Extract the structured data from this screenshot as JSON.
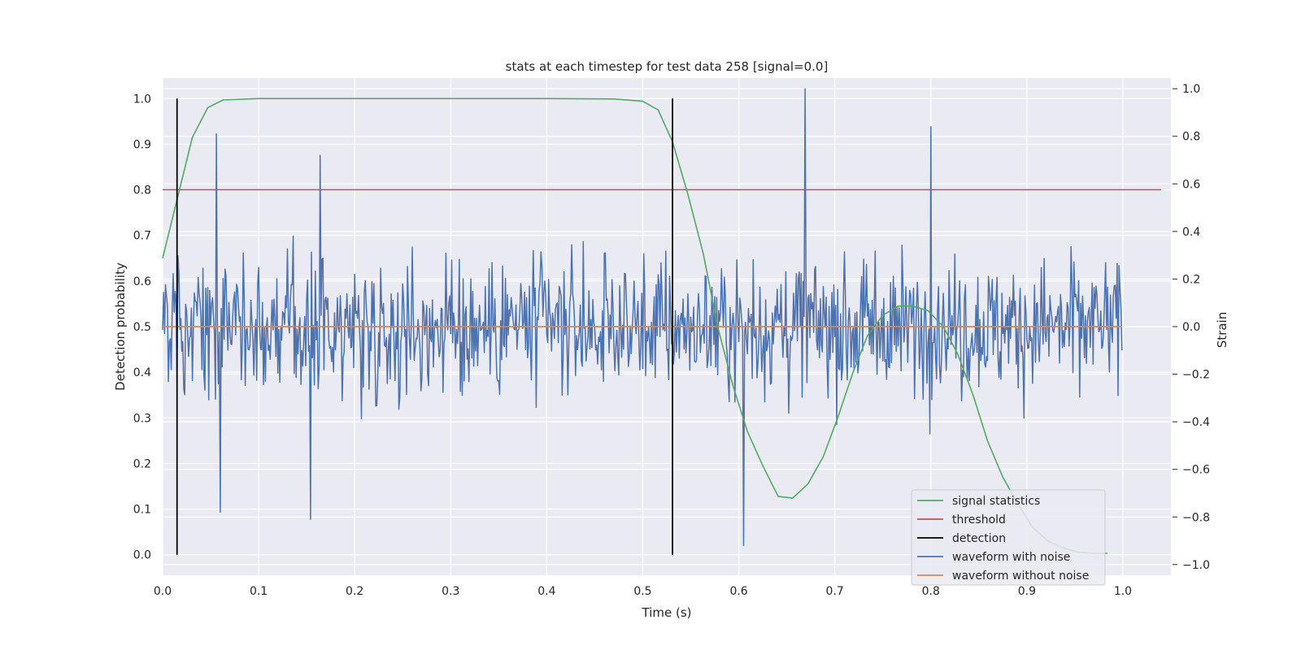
{
  "chart_data": {
    "type": "line",
    "title": "stats at each timestep for test data 258 [signal=0.0]",
    "xlabel": "Time (s)",
    "ylabel": "Detection probability",
    "y2label": "Strain",
    "xlim": [
      0.0,
      1.05
    ],
    "ylim": [
      -0.045,
      1.045
    ],
    "y2lim": [
      -1.045,
      1.045
    ],
    "x_ticks": [
      0.0,
      0.1,
      0.2,
      0.3,
      0.4,
      0.5,
      0.6,
      0.7,
      0.8,
      0.9,
      1.0
    ],
    "x_tick_labels": [
      "0.0",
      "0.1",
      "0.2",
      "0.3",
      "0.4",
      "0.5",
      "0.6",
      "0.7",
      "0.8",
      "0.9",
      "1.0"
    ],
    "y_ticks": [
      0.0,
      0.1,
      0.2,
      0.3,
      0.4,
      0.5,
      0.6,
      0.7,
      0.8,
      0.9,
      1.0
    ],
    "y_tick_labels": [
      "0.0",
      "0.1",
      "0.2",
      "0.3",
      "0.4",
      "0.5",
      "0.6",
      "0.7",
      "0.8",
      "0.9",
      "1.0"
    ],
    "y2_ticks": [
      -1.0,
      -0.8,
      -0.6,
      -0.4,
      -0.2,
      0.0,
      0.2,
      0.4,
      0.6,
      0.8,
      1.0
    ],
    "y2_tick_labels": [
      "−1.0",
      "−0.8",
      "−0.6",
      "−0.4",
      "−0.2",
      "0.0",
      "0.2",
      "0.4",
      "0.6",
      "0.8",
      "1.0"
    ],
    "grid": true,
    "legend_position": "lower-right",
    "series": [
      {
        "name": "signal statistics",
        "axis": "left",
        "color": "#55a868",
        "x": [
          0.0,
          0.031,
          0.047,
          0.063,
          0.1,
          0.2,
          0.3,
          0.4,
          0.47,
          0.5,
          0.516,
          0.531,
          0.547,
          0.563,
          0.578,
          0.594,
          0.609,
          0.625,
          0.641,
          0.656,
          0.672,
          0.688,
          0.703,
          0.719,
          0.734,
          0.75,
          0.766,
          0.781,
          0.797,
          0.813,
          0.828,
          0.844,
          0.859,
          0.875,
          0.891,
          0.906,
          0.922,
          0.938,
          0.953,
          0.969,
          0.984
        ],
        "y": [
          0.65,
          0.915,
          0.98,
          0.997,
          1.0,
          1.0,
          1.0,
          1.0,
          0.999,
          0.994,
          0.975,
          0.905,
          0.79,
          0.66,
          0.5,
          0.37,
          0.27,
          0.195,
          0.128,
          0.124,
          0.155,
          0.215,
          0.3,
          0.4,
          0.48,
          0.525,
          0.545,
          0.545,
          0.535,
          0.5,
          0.44,
          0.35,
          0.25,
          0.17,
          0.11,
          0.06,
          0.03,
          0.015,
          0.006,
          0.003,
          0.003
        ]
      },
      {
        "name": "threshold",
        "axis": "left",
        "color": "#c44e52",
        "x": [
          0.0,
          1.04
        ],
        "y": [
          0.8,
          0.8
        ]
      },
      {
        "name": "detection",
        "axis": "left",
        "color": "#000000",
        "events": [
          0.015,
          0.531
        ],
        "y_range": [
          0.0,
          1.0
        ]
      },
      {
        "name": "waveform with noise",
        "axis": "right",
        "color": "#4c72b0",
        "n_points": 1000,
        "x_range": [
          0.0,
          0.999
        ],
        "y_range": [
          -1.0,
          1.0
        ],
        "peaks": [
          {
            "x": 0.056,
            "y": 0.81
          },
          {
            "x": 0.164,
            "y": 0.72
          },
          {
            "x": 0.669,
            "y": 1.0
          },
          {
            "x": 0.8,
            "y": 0.84
          },
          {
            "x": 0.605,
            "y": -0.92
          },
          {
            "x": 0.06,
            "y": -0.78
          },
          {
            "x": 0.154,
            "y": -0.81
          }
        ]
      },
      {
        "name": "waveform without noise",
        "axis": "right",
        "color": "#dd8452",
        "x": [
          0.0,
          0.999
        ],
        "y": [
          0.0,
          0.0
        ]
      }
    ]
  }
}
